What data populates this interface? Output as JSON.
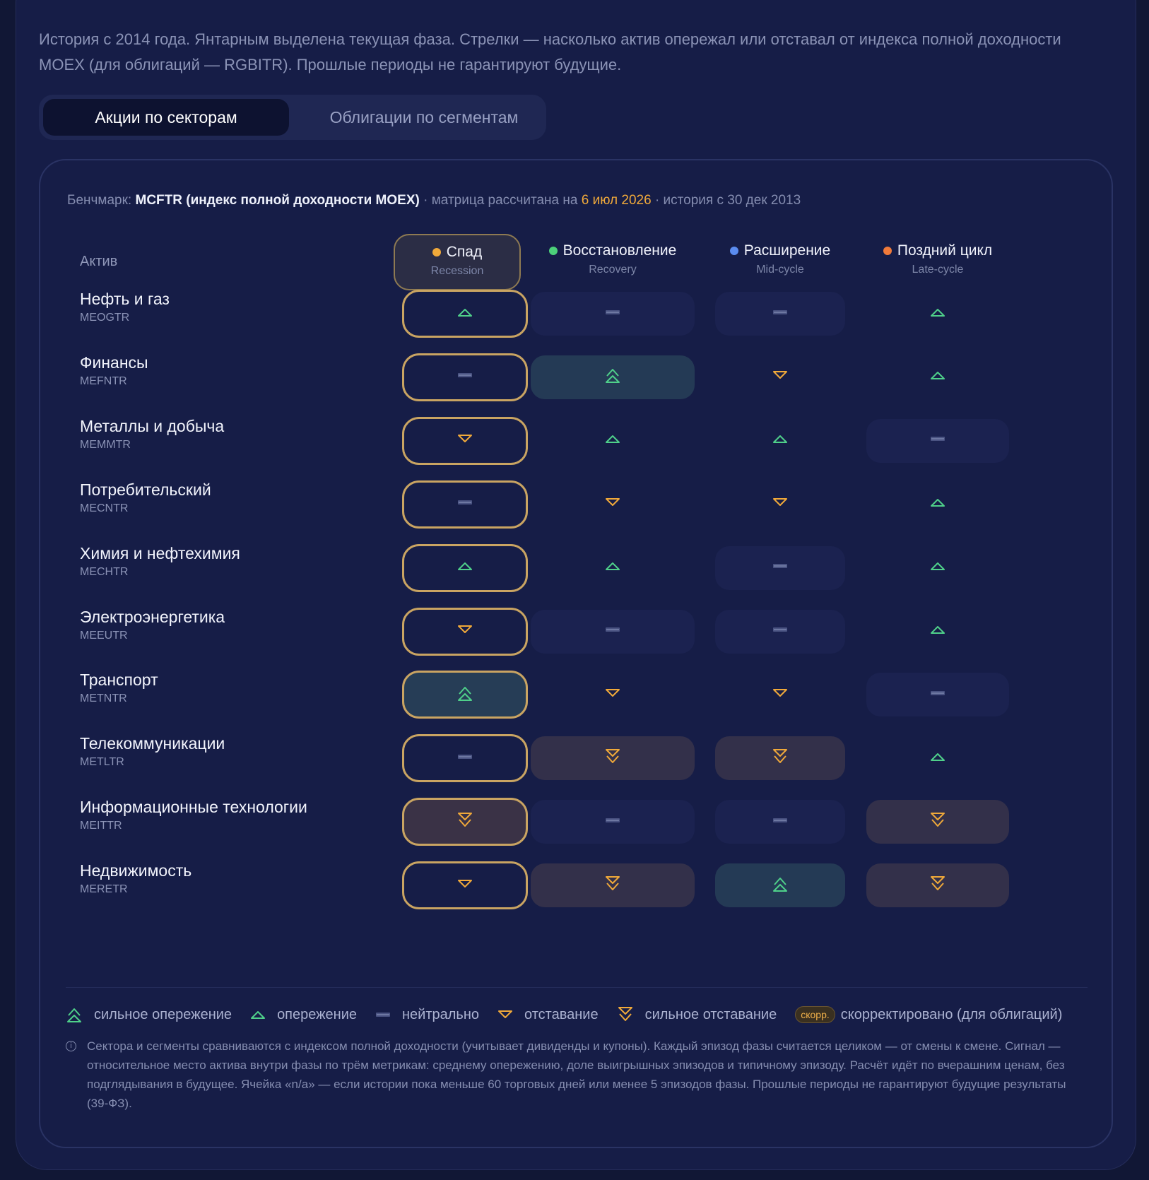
{
  "intro": "История с 2014 года. Янтарным выделена текущая фаза. Стрелки — насколько актив опережал или отставал от индекса полной доходности MOEX (для облигаций — RGBITR). Прошлые периоды не гарантируют будущие.",
  "tabs": [
    {
      "label": "Акции по секторам",
      "active": true
    },
    {
      "label": "Облигации по сегментам",
      "active": false
    }
  ],
  "benchmark": {
    "label": "Бенчмарк:",
    "name": "MCFTR (индекс полной доходности MOEX)",
    "calc_prefix": "· матрица рассчитана на",
    "date": "6 июл 2026",
    "history": "· история с 30 дек 2013"
  },
  "table": {
    "asset_header": "Актив",
    "phases": [
      {
        "name": "Спад",
        "sub": "Recession",
        "color": "#f0a93a",
        "current": true
      },
      {
        "name": "Восстановление",
        "sub": "Recovery",
        "color": "#4cd07a",
        "current": false
      },
      {
        "name": "Расширение",
        "sub": "Mid-cycle",
        "color": "#5b8cf0",
        "current": false
      },
      {
        "name": "Поздний цикл",
        "sub": "Late-cycle",
        "color": "#f07a3a",
        "current": false
      }
    ],
    "rows": [
      {
        "name": "Нефть и газ",
        "code": "MEOGTR",
        "signals": [
          "up",
          "neutral",
          "neutral",
          "up"
        ]
      },
      {
        "name": "Финансы",
        "code": "MEFNTR",
        "signals": [
          "neutral",
          "strong-up",
          "down",
          "up"
        ]
      },
      {
        "name": "Металлы и добыча",
        "code": "MEMMTR",
        "signals": [
          "down",
          "up",
          "up",
          "neutral"
        ]
      },
      {
        "name": "Потребительский",
        "code": "MECNTR",
        "signals": [
          "neutral",
          "down",
          "down",
          "up"
        ]
      },
      {
        "name": "Химия и нефтехимия",
        "code": "MECHTR",
        "signals": [
          "up",
          "up",
          "neutral",
          "up"
        ]
      },
      {
        "name": "Электроэнергетика",
        "code": "MEEUTR",
        "signals": [
          "down",
          "neutral",
          "neutral",
          "up"
        ]
      },
      {
        "name": "Транспорт",
        "code": "METNTR",
        "signals": [
          "strong-up",
          "down",
          "down",
          "neutral"
        ]
      },
      {
        "name": "Телекоммуникации",
        "code": "METLTR",
        "signals": [
          "neutral",
          "strong-down",
          "strong-down",
          "up"
        ]
      },
      {
        "name": "Информационные технологии",
        "code": "MEITTR",
        "signals": [
          "strong-down",
          "neutral",
          "neutral",
          "strong-down"
        ]
      },
      {
        "name": "Недвижимость",
        "code": "MERETR",
        "signals": [
          "down",
          "strong-down",
          "strong-up",
          "strong-down"
        ]
      }
    ]
  },
  "legend": {
    "strong_up": "сильное опережение",
    "up": "опережение",
    "neutral": "нейтрально",
    "down": "отставание",
    "strong_down": "сильное отставание",
    "badge": "скорр.",
    "adjusted": "скорректировано (для облигаций)"
  },
  "note": "Сектора и сегменты сравниваются с индексом полной доходности (учитывает дивиденды и купоны). Каждый эпизод фазы считается целиком — от смены к смене. Сигнал — относительное место актива внутри фазы по трём метрикам: среднему опережению, доле выигрышных эпизодов и типичному эпизоду. Расчёт идёт по вчерашним ценам, без подглядывания в будущее. Ячейка «n/a» — если истории пока меньше 60 торговых дней или менее 5 эпизодов фазы. Прошлые периоды не гарантируют будущие результаты (39-ФЗ).",
  "colors": {
    "up": "#4fd08a",
    "down": "#f0a93a",
    "neutral": "#4a5382",
    "amber_border": "#c9a462"
  }
}
